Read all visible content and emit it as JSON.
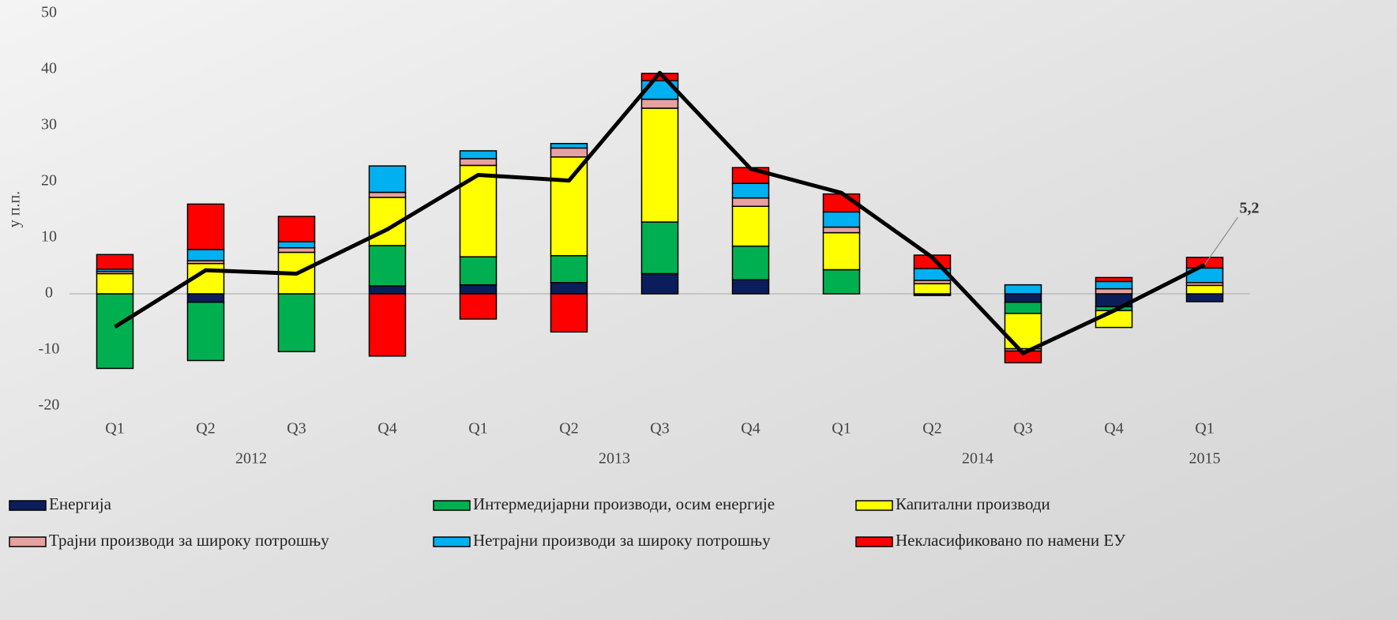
{
  "chart_data": {
    "type": "stacked-bar-line",
    "y_label": "у п.п.",
    "categories": [
      "Q1",
      "Q2",
      "Q3",
      "Q4",
      "Q1",
      "Q2",
      "Q3",
      "Q4",
      "Q1",
      "Q2",
      "Q3",
      "Q4",
      "Q1"
    ],
    "x_groups": [
      {
        "label": "2012",
        "count": 4
      },
      {
        "label": "2013",
        "count": 4
      },
      {
        "label": "2014",
        "count": 4
      },
      {
        "label": "2015",
        "count": 1
      }
    ],
    "ylim": [
      -20,
      50
    ],
    "yticks": [
      -20,
      -10,
      0,
      10,
      20,
      30,
      40,
      50
    ],
    "series": [
      {
        "name": "Енергија",
        "color": "#0b1e5b",
        "values": [
          0,
          -1.5,
          0,
          1.4,
          1.6,
          2.0,
          3.6,
          2.5,
          0,
          -0.3,
          -1.5,
          -2.3,
          -1.4
        ]
      },
      {
        "name": "Интермедијарни производи, осим енергије",
        "color": "#00b050",
        "values": [
          -13.3,
          -10.4,
          -10.3,
          7.2,
          5.0,
          4.8,
          9.2,
          6.0,
          4.3,
          0,
          -2.0,
          -0.7,
          0
        ]
      },
      {
        "name": "Капитални производи",
        "color": "#ffff00",
        "values": [
          3.6,
          5.4,
          7.4,
          8.6,
          16.3,
          17.6,
          20.3,
          7.1,
          6.6,
          1.8,
          -6.3,
          -3.0,
          1.5
        ]
      },
      {
        "name": "Трајни производи за широку потрошњу",
        "color": "#e6a1a1",
        "values": [
          0.4,
          0.5,
          0.8,
          0.9,
          1.2,
          1.6,
          1.6,
          1.5,
          1.0,
          0.6,
          -0.4,
          0.9,
          0.5
        ]
      },
      {
        "name": "Нетрајни производи за широку потрошњу",
        "color": "#00b0f0",
        "values": [
          0.4,
          2.0,
          1.1,
          4.7,
          1.4,
          0.8,
          3.3,
          2.6,
          2.7,
          2.1,
          1.6,
          1.3,
          2.6
        ]
      },
      {
        "name": "Некласификовано по намени ЕУ",
        "color": "#ff0000",
        "values": [
          2.6,
          8.1,
          4.5,
          -11.1,
          -4.5,
          -6.8,
          1.3,
          2.8,
          3.2,
          2.4,
          -2.1,
          0.7,
          1.9
        ]
      }
    ],
    "line": {
      "color": "#000000",
      "values": [
        -5.9,
        4.2,
        3.6,
        11.5,
        21.2,
        20.2,
        39.4,
        22.3,
        18.0,
        6.5,
        -10.6,
        -3.0,
        5.2
      ],
      "value_labels": [
        null,
        null,
        null,
        null,
        null,
        null,
        null,
        null,
        null,
        null,
        null,
        null,
        "5,2"
      ]
    }
  }
}
